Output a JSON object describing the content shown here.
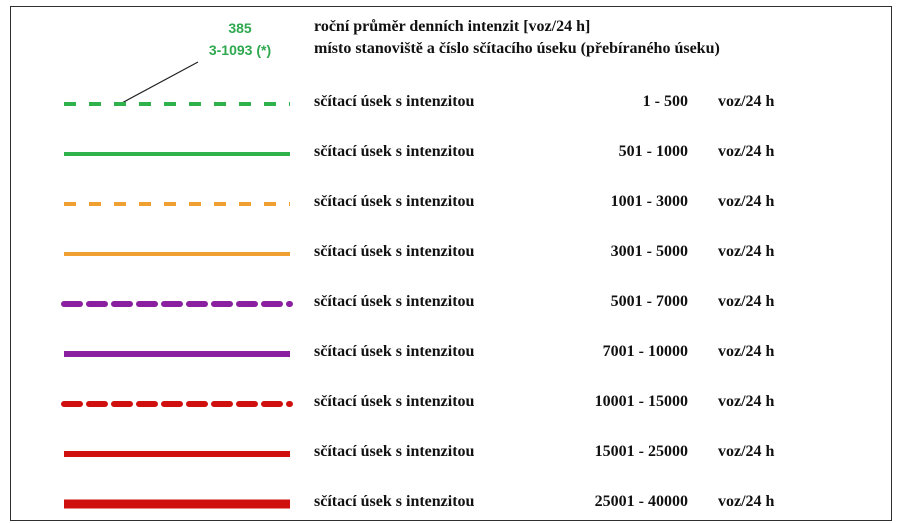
{
  "header": {
    "value_example": "385",
    "id_example": "3-1093 (*)",
    "value_desc": "roční průměr denních intenzit [voz/24 h]",
    "id_desc": "místo stanoviště a číslo sčítacího úseku (přebíraného úseku)"
  },
  "rows": [
    {
      "label": "sčítací úsek s intenzitou",
      "range": "1 - 500",
      "unit": "voz/24 h",
      "color": "#2fb24b",
      "style": "dashed",
      "weight": "normal"
    },
    {
      "label": "sčítací úsek s intenzitou",
      "range": "501 - 1000",
      "unit": "voz/24 h",
      "color": "#2fb24b",
      "style": "solid",
      "weight": "normal"
    },
    {
      "label": "sčítací úsek s intenzitou",
      "range": "1001 - 3000",
      "unit": "voz/24 h",
      "color": "#f0a030",
      "style": "dashed",
      "weight": "normal"
    },
    {
      "label": "sčítací úsek s intenzitou",
      "range": "3001 - 5000",
      "unit": "voz/24 h",
      "color": "#f0a030",
      "style": "solid",
      "weight": "normal"
    },
    {
      "label": "sčítací úsek s intenzitou",
      "range": "5001 - 7000",
      "unit": "voz/24 h",
      "color": "#8a1fa0",
      "style": "dashed",
      "weight": "bold"
    },
    {
      "label": "sčítací úsek s intenzitou",
      "range": "7001 - 10000",
      "unit": "voz/24 h",
      "color": "#8a1fa0",
      "style": "solid",
      "weight": "bold"
    },
    {
      "label": "sčítací úsek s intenzitou",
      "range": "10001 - 15000",
      "unit": "voz/24 h",
      "color": "#d00f0f",
      "style": "dashed",
      "weight": "bold"
    },
    {
      "label": "sčítací úsek s intenzitou",
      "range": "15001 - 25000",
      "unit": "voz/24 h",
      "color": "#d00f0f",
      "style": "solid",
      "weight": "bold"
    },
    {
      "label": "sčítací úsek s intenzitou",
      "range": "25001 - 40000",
      "unit": "voz/24 h",
      "color": "#d00f0f",
      "style": "solid",
      "weight": "heavy"
    }
  ]
}
